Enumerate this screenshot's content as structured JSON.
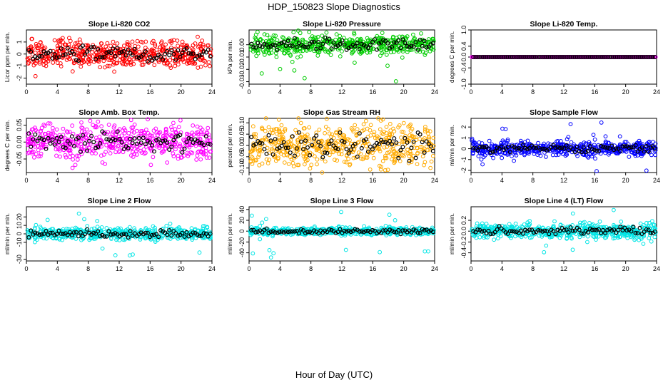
{
  "figure": {
    "title": "HDP_150823  Slope Diagnostics",
    "xlabel": "Hour of Day (UTC)"
  },
  "chart_data": [
    {
      "type": "scatter",
      "title": "Slope Li-820 CO2",
      "ylabel": "Licor ppm per min.",
      "color": "#ff0000",
      "xlim": [
        0,
        24
      ],
      "xticks": [
        0,
        4,
        8,
        12,
        16,
        20,
        24
      ],
      "xtick_labels": [
        "0",
        "4",
        "8",
        "12",
        "16",
        "20",
        "24"
      ],
      "ylim": [
        -2.5,
        2.0
      ],
      "yticks": [
        -2,
        -1,
        0,
        1
      ],
      "ytick_labels": [
        "-2",
        "-1",
        "0",
        "1"
      ],
      "spread": 0.55,
      "lo": -2.4,
      "hi": 1.8,
      "series": [
        {
          "name": "Slope",
          "color": "#ff0000"
        },
        {
          "name": "Hourly mean",
          "color": "#000000"
        }
      ]
    },
    {
      "type": "scatter",
      "title": "Slope Li-820 Pressure",
      "ylabel": "kPa per min.",
      "color": "#00cc00",
      "xlim": [
        0,
        24
      ],
      "xticks": [
        0,
        4,
        8,
        12,
        16,
        20,
        24
      ],
      "xtick_labels": [
        "0",
        "4",
        "8",
        "12",
        "16",
        "20",
        "24"
      ],
      "ylim": [
        -0.032,
        0.012
      ],
      "yticks": [
        -0.03,
        -0.02,
        -0.01,
        0.0
      ],
      "ytick_labels": [
        "-0.03",
        "-0.02",
        "-0.01",
        "0.00"
      ],
      "spread": 0.004,
      "lo": -0.03,
      "hi": 0.008,
      "series": [
        {
          "name": "Slope",
          "color": "#00cc00"
        },
        {
          "name": "Hourly mean",
          "color": "#000000"
        }
      ]
    },
    {
      "type": "scatter",
      "title": "Slope Li-820 Temp.",
      "ylabel": "degrees C per min.",
      "color": "#ff00ff",
      "xlim": [
        0,
        24
      ],
      "xticks": [
        0,
        4,
        8,
        12,
        16,
        20,
        24
      ],
      "xtick_labels": [
        "0",
        "4",
        "8",
        "12",
        "16",
        "20",
        "24"
      ],
      "ylim": [
        -1.0,
        1.0
      ],
      "yticks": [
        -1.0,
        -0.4,
        0.0,
        0.4,
        1.0
      ],
      "ytick_labels": [
        "-1.0",
        "-0.4",
        "0.0",
        "0.4",
        "1.0"
      ],
      "spread": 0.0,
      "lo": 0,
      "hi": 0,
      "series": [
        {
          "name": "Slope",
          "color": "#ff00ff"
        },
        {
          "name": "Hourly mean",
          "color": "#000000"
        }
      ]
    },
    {
      "type": "scatter",
      "title": "Slope Amb. Box Temp.",
      "ylabel": "degrees C per min.",
      "color": "#ff00ff",
      "xlim": [
        0,
        24
      ],
      "xticks": [
        0,
        4,
        8,
        12,
        16,
        20,
        24
      ],
      "xtick_labels": [
        "0",
        "4",
        "8",
        "12",
        "16",
        "20",
        "24"
      ],
      "ylim": [
        -0.09,
        0.07
      ],
      "yticks": [
        -0.05,
        0.0,
        0.05
      ],
      "ytick_labels": [
        "-0.05",
        "0.00",
        "0.05"
      ],
      "spread": 0.025,
      "lo": -0.085,
      "hi": 0.065,
      "series": [
        {
          "name": "Slope",
          "color": "#ff00ff"
        },
        {
          "name": "Hourly mean",
          "color": "#000000"
        }
      ]
    },
    {
      "type": "scatter",
      "title": "Slope Gas Stream RH",
      "ylabel": "percent per min.",
      "color": "#ffaa00",
      "xlim": [
        0,
        24
      ],
      "xticks": [
        0,
        4,
        8,
        12,
        16,
        20,
        24
      ],
      "xtick_labels": [
        "0",
        "4",
        "8",
        "12",
        "16",
        "20",
        "24"
      ],
      "ylim": [
        -0.12,
        0.12
      ],
      "yticks": [
        -0.1,
        -0.05,
        0.0,
        0.05,
        0.1
      ],
      "ytick_labels": [
        "-0.10",
        "-0.05",
        "0.00",
        "0.05",
        "0.10"
      ],
      "spread": 0.045,
      "lo": -0.11,
      "hi": 0.11,
      "series": [
        {
          "name": "Slope",
          "color": "#ffaa00"
        },
        {
          "name": "Hourly mean",
          "color": "#000000"
        }
      ]
    },
    {
      "type": "scatter",
      "title": "Slope Sample Flow",
      "ylabel": "ml/min per min.",
      "color": "#0000ff",
      "xlim": [
        0,
        24
      ],
      "xticks": [
        0,
        4,
        8,
        12,
        16,
        20,
        24
      ],
      "xtick_labels": [
        "0",
        "4",
        "8",
        "12",
        "16",
        "20",
        "24"
      ],
      "ylim": [
        -2.2,
        2.8
      ],
      "yticks": [
        -2,
        -1,
        0,
        1,
        2
      ],
      "ytick_labels": [
        "-2",
        "-1",
        "0",
        "1",
        "2"
      ],
      "spread": 0.35,
      "lo": -2.1,
      "hi": 2.6,
      "series": [
        {
          "name": "Slope",
          "color": "#0000ff"
        },
        {
          "name": "Hourly mean",
          "color": "#000000"
        }
      ]
    },
    {
      "type": "scatter",
      "title": "Slope Line 2 Flow",
      "ylabel": "ml/min per min.",
      "color": "#00e5e5",
      "xlim": [
        0,
        24
      ],
      "xticks": [
        0,
        4,
        8,
        12,
        16,
        20,
        24
      ],
      "xtick_labels": [
        "0",
        "4",
        "8",
        "12",
        "16",
        "20",
        "24"
      ],
      "ylim": [
        -32,
        32
      ],
      "yticks": [
        -30,
        -10,
        0,
        10,
        20
      ],
      "ytick_labels": [
        "-30",
        "-10",
        "0",
        "10",
        "20"
      ],
      "spread": 3.5,
      "lo": -30,
      "hi": 30,
      "series": [
        {
          "name": "Slope",
          "color": "#00e5e5"
        },
        {
          "name": "Hourly mean",
          "color": "#000000"
        }
      ]
    },
    {
      "type": "scatter",
      "title": "Slope Line 3 Flow",
      "ylabel": "ml/min per min.",
      "color": "#00e5e5",
      "xlim": [
        0,
        24
      ],
      "xticks": [
        0,
        4,
        8,
        12,
        16,
        20,
        24
      ],
      "xtick_labels": [
        "0",
        "4",
        "8",
        "12",
        "16",
        "20",
        "24"
      ],
      "ylim": [
        -55,
        45
      ],
      "yticks": [
        -40,
        -20,
        0,
        20,
        40
      ],
      "ytick_labels": [
        "-40",
        "-20",
        "0",
        "20",
        "40"
      ],
      "spread": 3.5,
      "lo": -50,
      "hi": 40,
      "series": [
        {
          "name": "Slope",
          "color": "#00e5e5"
        },
        {
          "name": "Hourly mean",
          "color": "#000000"
        }
      ]
    },
    {
      "type": "scatter",
      "title": "Slope Line 4 (LT) Flow",
      "ylabel": "ml/min per min.",
      "color": "#00e5e5",
      "xlim": [
        0,
        24
      ],
      "xticks": [
        0,
        4,
        8,
        12,
        16,
        20,
        24
      ],
      "xtick_labels": [
        "0",
        "4",
        "8",
        "12",
        "16",
        "20",
        "24"
      ],
      "ylim": [
        -0.55,
        0.45
      ],
      "yticks": [
        -0.4,
        -0.2,
        0.0,
        0.2
      ],
      "ytick_labels": [
        "-0.4",
        "-0.2",
        "0.0",
        "0.2"
      ],
      "spread": 0.07,
      "lo": -0.5,
      "hi": 0.4,
      "series": [
        {
          "name": "Slope",
          "color": "#00e5e5"
        },
        {
          "name": "Hourly mean",
          "color": "#000000"
        }
      ]
    }
  ]
}
